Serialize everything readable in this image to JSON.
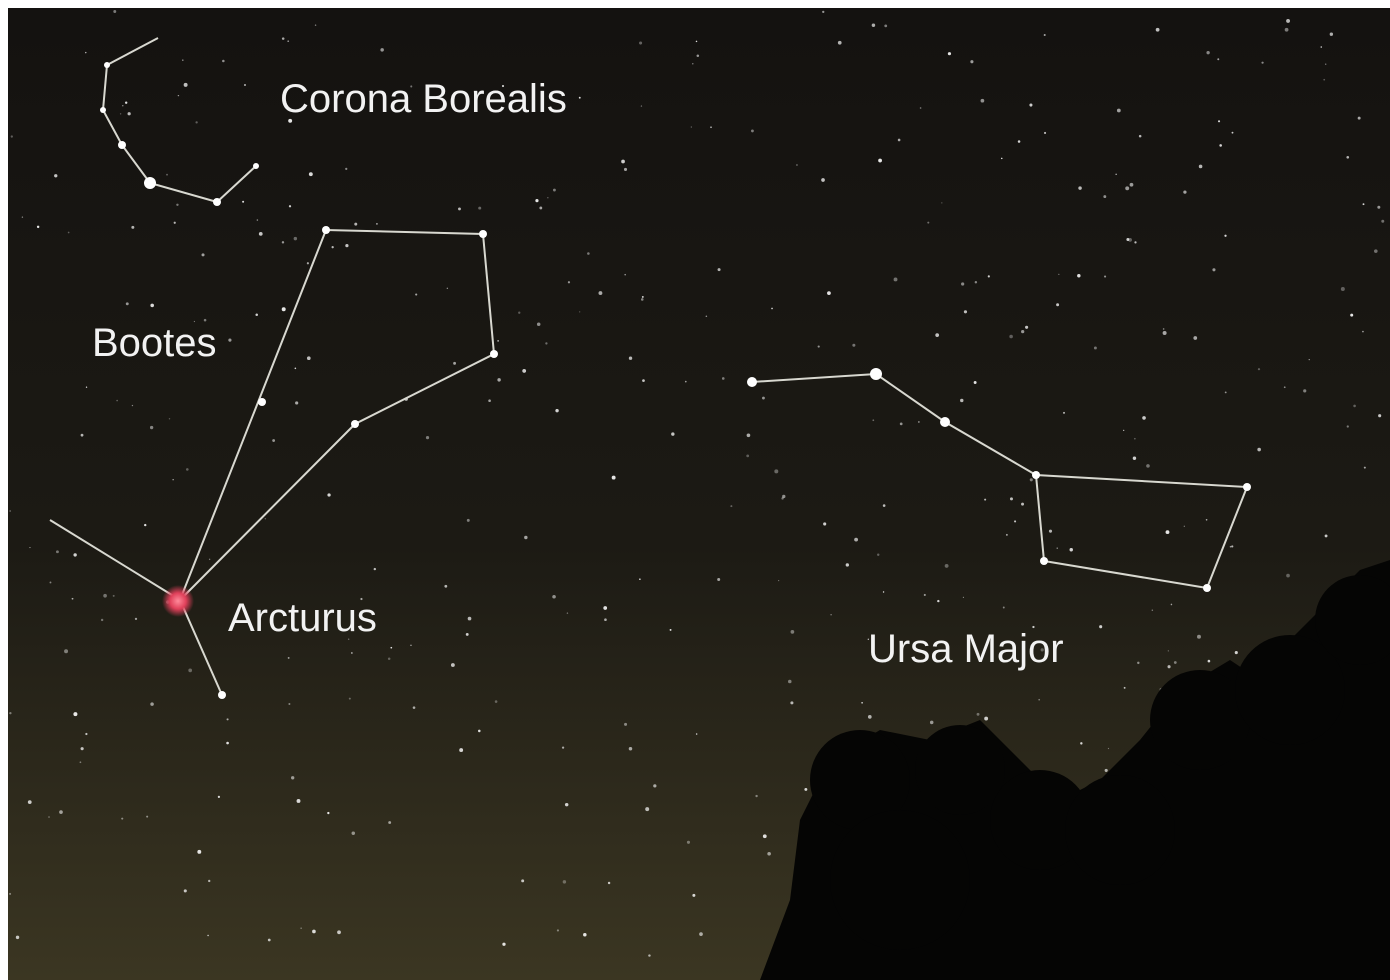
{
  "labels": {
    "corona_borealis": "Corona Borealis",
    "bootes": "Bootes",
    "arcturus": "Arcturus",
    "ursa_major": "Ursa Major"
  }
}
